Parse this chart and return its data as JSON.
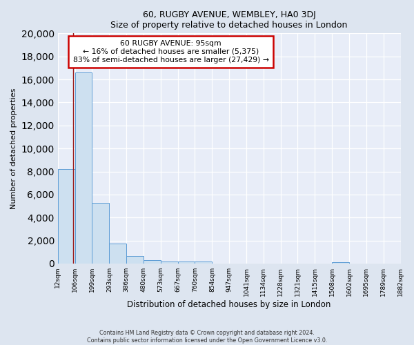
{
  "title": "60, RUGBY AVENUE, WEMBLEY, HA0 3DJ",
  "subtitle": "Size of property relative to detached houses in London",
  "xlabel": "Distribution of detached houses by size in London",
  "ylabel": "Number of detached properties",
  "bar_edges": [
    12,
    106,
    199,
    293,
    386,
    480,
    573,
    667,
    760,
    854,
    947,
    1041,
    1134,
    1228,
    1321,
    1415,
    1508,
    1602,
    1695,
    1789,
    1882
  ],
  "bar_heights": [
    8200,
    16600,
    5300,
    1750,
    650,
    300,
    200,
    200,
    200,
    0,
    0,
    0,
    0,
    0,
    0,
    0,
    100,
    0,
    0,
    0
  ],
  "bar_color": "#cde0f0",
  "bar_edge_color": "#5b9bd5",
  "property_line_x": 95,
  "property_line_color": "#9b1c1c",
  "annotation_title": "60 RUGBY AVENUE: 95sqm",
  "annotation_line1": "← 16% of detached houses are smaller (5,375)",
  "annotation_line2": "83% of semi-detached houses are larger (27,429) →",
  "annotation_box_color": "#ffffff",
  "annotation_box_edge": "#cc0000",
  "tick_labels": [
    "12sqm",
    "106sqm",
    "199sqm",
    "293sqm",
    "386sqm",
    "480sqm",
    "573sqm",
    "667sqm",
    "760sqm",
    "854sqm",
    "947sqm",
    "1041sqm",
    "1134sqm",
    "1228sqm",
    "1321sqm",
    "1415sqm",
    "1508sqm",
    "1602sqm",
    "1695sqm",
    "1789sqm",
    "1882sqm"
  ],
  "ylim": [
    0,
    20000
  ],
  "yticks": [
    0,
    2000,
    4000,
    6000,
    8000,
    10000,
    12000,
    14000,
    16000,
    18000,
    20000
  ],
  "footnote1": "Contains HM Land Registry data © Crown copyright and database right 2024.",
  "footnote2": "Contains public sector information licensed under the Open Government Licence v3.0.",
  "bg_color": "#dde5f0",
  "plot_bg_color": "#e8edf8"
}
